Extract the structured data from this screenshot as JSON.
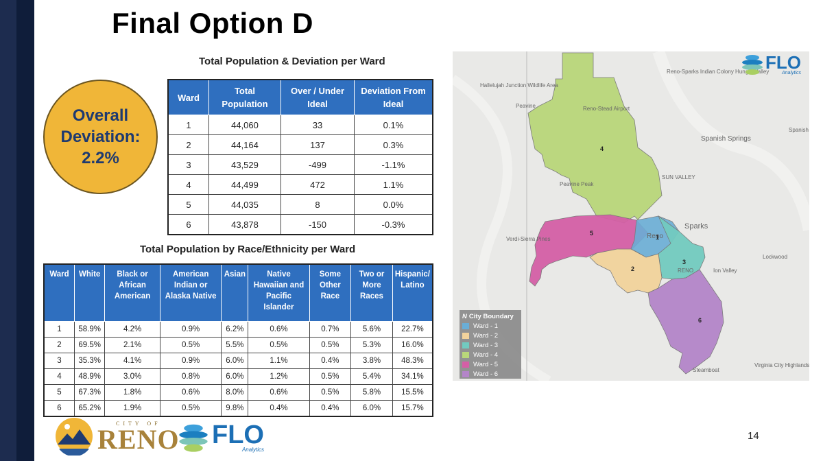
{
  "title": "Final Option D",
  "overall": {
    "text": "Overall\nDeviation:\n2.2%"
  },
  "table1": {
    "heading": "Total Population & Deviation per Ward",
    "headers": [
      "Ward",
      "Total Population",
      "Over / Under Ideal",
      "Deviation From Ideal"
    ],
    "rows": [
      [
        "1",
        "44,060",
        "33",
        "0.1%"
      ],
      [
        "2",
        "44,164",
        "137",
        "0.3%"
      ],
      [
        "3",
        "43,529",
        "-499",
        "-1.1%"
      ],
      [
        "4",
        "44,499",
        "472",
        "1.1%"
      ],
      [
        "5",
        "44,035",
        "8",
        "0.0%"
      ],
      [
        "6",
        "43,878",
        "-150",
        "-0.3%"
      ]
    ]
  },
  "table2": {
    "heading": "Total Population by Race/Ethnicity per Ward",
    "headers": [
      "Ward",
      "White",
      "Black or African American",
      "American Indian or Alaska Native",
      "Asian",
      "Native Hawaiian and Pacific Islander",
      "Some Other Race",
      "Two or More Races",
      "Hispanic/ Latino"
    ],
    "rows": [
      [
        "1",
        "58.9%",
        "4.2%",
        "0.9%",
        "6.2%",
        "0.6%",
        "0.7%",
        "5.6%",
        "22.7%"
      ],
      [
        "2",
        "69.5%",
        "2.1%",
        "0.5%",
        "5.5%",
        "0.5%",
        "0.5%",
        "5.3%",
        "16.0%"
      ],
      [
        "3",
        "35.3%",
        "4.1%",
        "0.9%",
        "6.0%",
        "1.1%",
        "0.4%",
        "3.8%",
        "48.3%"
      ],
      [
        "4",
        "48.9%",
        "3.0%",
        "0.8%",
        "6.0%",
        "1.2%",
        "0.5%",
        "5.4%",
        "34.1%"
      ],
      [
        "5",
        "67.3%",
        "1.8%",
        "0.6%",
        "8.0%",
        "0.6%",
        "0.5%",
        "5.8%",
        "15.5%"
      ],
      [
        "6",
        "65.2%",
        "1.9%",
        "0.5%",
        "9.8%",
        "0.4%",
        "0.4%",
        "6.0%",
        "15.7%"
      ]
    ]
  },
  "map": {
    "place_labels": [
      "Reno-Sparks Indian Colony Hungry Valley",
      "Hallelujah Junction Wildlife Area",
      "Peavine",
      "Reno-Stead Airport",
      "Spanish Springs",
      "Spanish",
      "Peavine Peak",
      "SUN VALLEY",
      "Sparks",
      "Verdi-Sierra Pines",
      "Lockwood",
      "Virginia City Highlands",
      "Steamboat",
      "Reno",
      "RENO",
      "Ion Valley"
    ],
    "ward_numbers": [
      "1",
      "2",
      "3",
      "4",
      "5",
      "6"
    ],
    "legend": {
      "title": "City Boundary",
      "items": [
        {
          "label": "Ward - 1",
          "color": "#6aaed6"
        },
        {
          "label": "Ward - 2",
          "color": "#f2d39c"
        },
        {
          "label": "Ward - 3",
          "color": "#72cbc0"
        },
        {
          "label": "Ward - 4",
          "color": "#b9d77a"
        },
        {
          "label": "Ward - 5",
          "color": "#d45fa6"
        },
        {
          "label": "Ward - 6",
          "color": "#b485c9"
        }
      ]
    }
  },
  "logos": {
    "flo_text": "FLO",
    "flo_sub": "Analytics",
    "reno_top": "CITY OF",
    "reno_main": "RENO"
  },
  "page_number": "14",
  "colors": {
    "header_blue": "#2f6fbf",
    "circle_gold": "#f0b638",
    "circle_text": "#1e3a70",
    "stripe": "#1d2c4f"
  }
}
